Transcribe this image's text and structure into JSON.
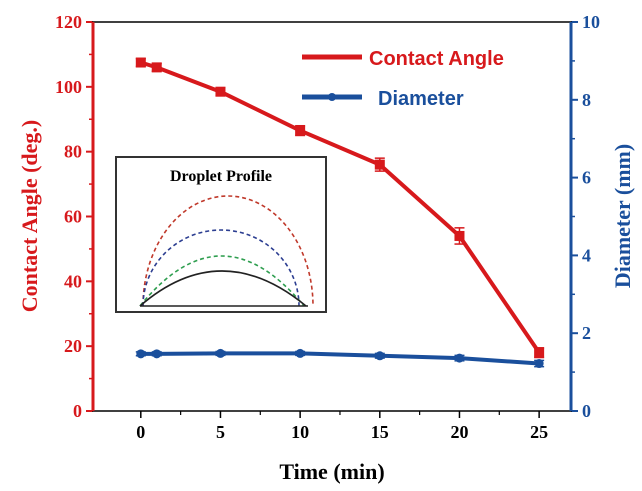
{
  "chart_data": {
    "type": "line",
    "x": [
      0,
      1,
      5,
      10,
      15,
      20,
      25
    ],
    "xlabel": "Time (min)",
    "xlim": [
      -3,
      27
    ],
    "xticks": [
      0,
      5,
      10,
      15,
      20,
      25
    ],
    "yleft": {
      "label": "Contact Angle (deg.)",
      "lim": [
        0,
        120
      ],
      "ticks": [
        0,
        20,
        40,
        60,
        80,
        100,
        120
      ],
      "color": "#d7191c"
    },
    "yright": {
      "label": "Diameter (mm)",
      "lim": [
        0,
        10
      ],
      "ticks": [
        0,
        2,
        4,
        6,
        8,
        10
      ],
      "color": "#1a4f9c"
    },
    "series": [
      {
        "name": "Contact Angle",
        "axis": "left",
        "color": "#d7191c",
        "values": [
          107.5,
          106,
          98.5,
          86.5,
          76,
          54,
          18
        ],
        "errors": [
          1.2,
          1.2,
          1.2,
          1.5,
          2.0,
          2.5,
          1.5
        ]
      },
      {
        "name": "Diameter",
        "axis": "right",
        "color": "#1a4f9c",
        "values": [
          1.47,
          1.47,
          1.48,
          1.48,
          1.42,
          1.36,
          1.22
        ],
        "errors": [
          0.05,
          0.05,
          0.05,
          0.05,
          0.06,
          0.07,
          0.08
        ]
      }
    ],
    "legend": "top-right",
    "grid": false,
    "inset": {
      "title": "Droplet Profile",
      "curves": [
        {
          "color": "#c0392b",
          "style": "dashed",
          "shape": "semicircle-tall"
        },
        {
          "color": "#2c3e91",
          "style": "dashed",
          "shape": "semicircle"
        },
        {
          "color": "#2e9e4f",
          "style": "dashed",
          "shape": "cap-medium"
        },
        {
          "color": "#222222",
          "style": "solid",
          "shape": "cap-flat"
        }
      ]
    }
  }
}
